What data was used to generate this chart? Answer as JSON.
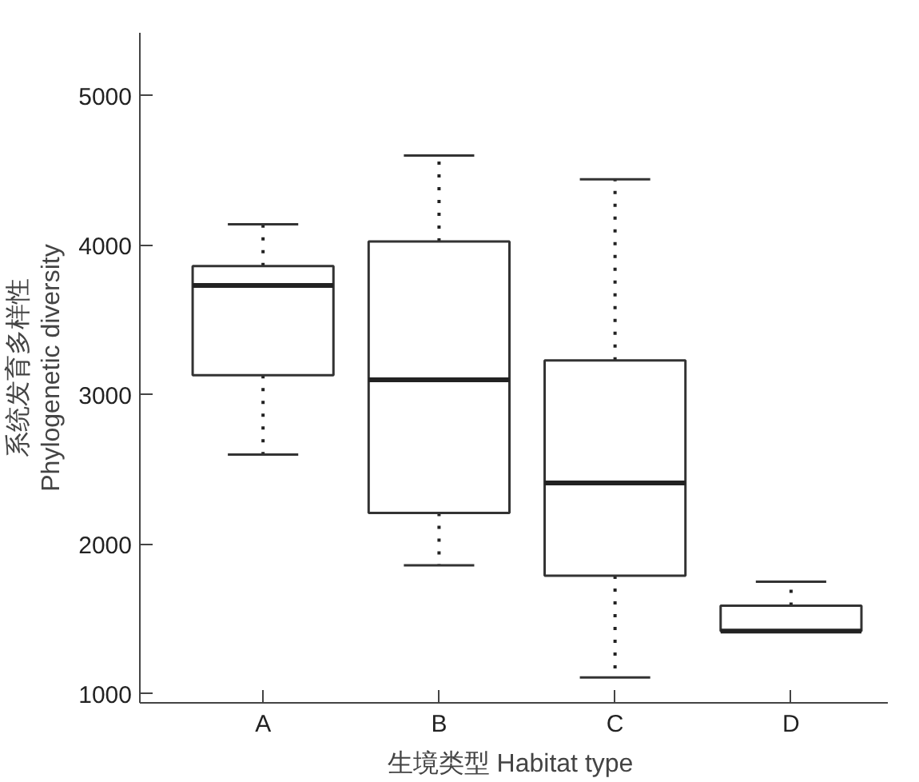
{
  "chart_data": {
    "type": "box",
    "xlabel": "生境类型  Habitat type",
    "ylabel": "系统发育多样性\nPhylogenetic diversity",
    "categories": [
      "A",
      "B",
      "C",
      "D"
    ],
    "boxes": [
      {
        "low": 2600,
        "q1": 3130,
        "median": 3730,
        "q3": 3860,
        "high": 4140
      },
      {
        "low": 1860,
        "q1": 2210,
        "median": 3100,
        "q3": 4025,
        "high": 4600
      },
      {
        "low": 1110,
        "q1": 1790,
        "median": 2410,
        "q3": 3230,
        "high": 4440
      },
      {
        "low": 1420,
        "q1": 1420,
        "median": 1420,
        "q3": 1590,
        "high": 1750
      }
    ],
    "ylim": [
      940,
      5420
    ],
    "yticks": [
      1000,
      2000,
      3000,
      4000,
      5000
    ],
    "grid": false,
    "line_style": "dotted"
  }
}
